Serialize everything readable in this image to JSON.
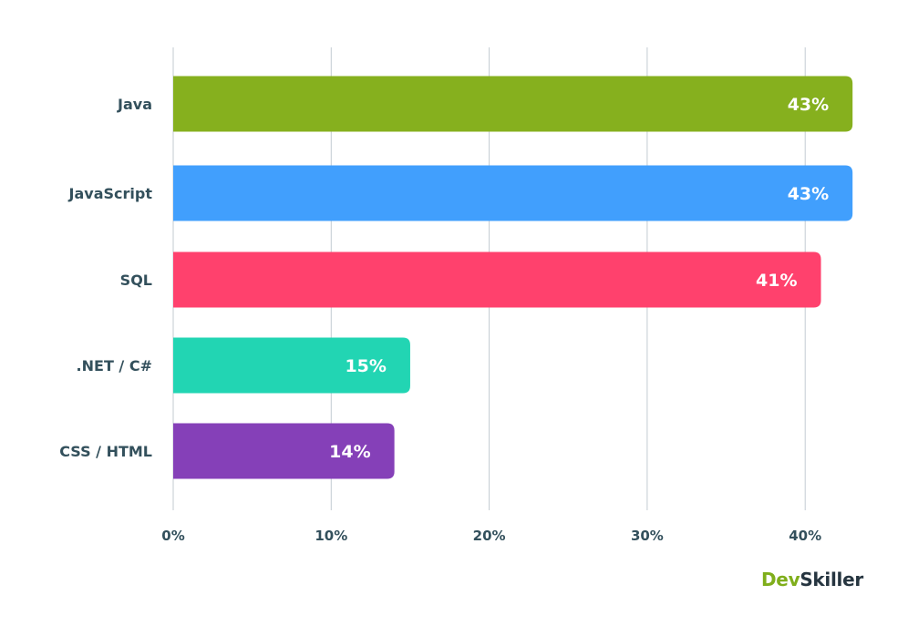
{
  "chart_data": {
    "type": "bar",
    "orientation": "horizontal",
    "categories": [
      "Java",
      "JavaScript",
      "SQL",
      ".NET / C#",
      "CSS / HTML"
    ],
    "values": [
      43,
      43,
      41,
      15,
      14
    ],
    "value_labels": [
      "43%",
      "43%",
      "41%",
      "15%",
      "14%"
    ],
    "colors": [
      "#86b01e",
      "#419ffd",
      "#ff416d",
      "#22d5b3",
      "#8540b8"
    ],
    "xlim": [
      0,
      43
    ],
    "xticks": [
      0,
      10,
      20,
      30,
      40
    ],
    "xtick_labels": [
      "0%",
      "10%",
      "20%",
      "30%",
      "40%"
    ],
    "title": "",
    "xlabel": "",
    "ylabel": "",
    "grid": "vertical",
    "legend": "none"
  },
  "logo": {
    "part1": "Dev",
    "part2": "Skiller",
    "colors": [
      "#7fae1b",
      "#263540"
    ]
  }
}
